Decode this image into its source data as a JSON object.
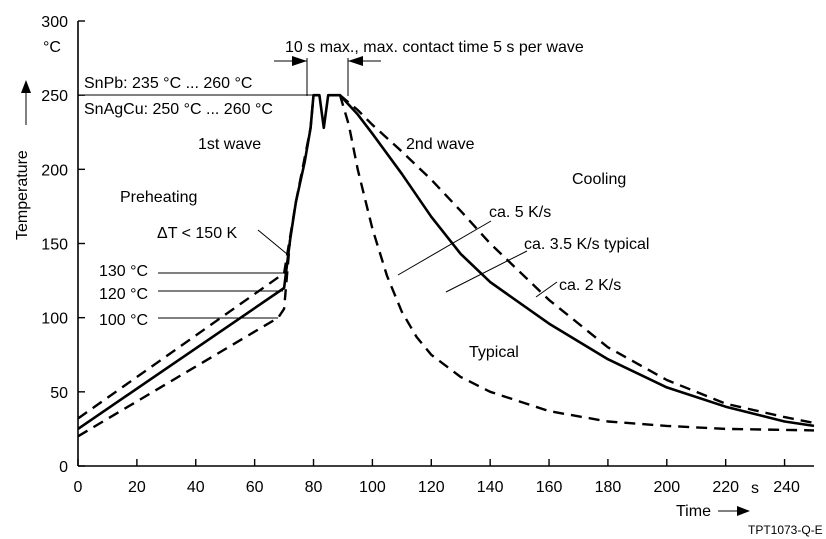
{
  "chart_data": {
    "type": "line",
    "xlabel": "Time",
    "ylabel": "Temperature",
    "x_unit": "s",
    "y_unit": "°C",
    "xlim": [
      0,
      250
    ],
    "ylim": [
      0,
      300
    ],
    "x_ticks": [
      0,
      20,
      40,
      60,
      80,
      100,
      120,
      140,
      160,
      180,
      200,
      220,
      240
    ],
    "y_ticks": [
      0,
      50,
      100,
      150,
      200,
      250,
      300
    ],
    "series": [
      {
        "style": "solid",
        "points": [
          [
            0,
            25
          ],
          [
            70,
            120
          ],
          [
            72,
            152
          ],
          [
            74,
            178
          ],
          [
            77,
            205
          ],
          [
            79,
            228
          ],
          [
            80,
            250
          ],
          [
            82,
            250
          ],
          [
            83.5,
            228
          ],
          [
            85,
            250
          ],
          [
            89,
            250
          ],
          [
            95,
            237
          ],
          [
            100,
            224
          ],
          [
            110,
            197
          ],
          [
            120,
            168
          ],
          [
            130,
            143
          ],
          [
            140,
            124
          ],
          [
            160,
            96
          ],
          [
            180,
            72
          ],
          [
            200,
            53
          ],
          [
            220,
            40
          ],
          [
            240,
            30
          ],
          [
            250,
            27
          ]
        ]
      },
      {
        "style": "dashed",
        "points": [
          [
            0,
            32
          ],
          [
            70,
            130
          ],
          [
            74,
            178
          ],
          [
            79,
            228
          ],
          [
            80,
            250
          ]
        ]
      },
      {
        "style": "dashed",
        "points": [
          [
            0,
            20
          ],
          [
            68,
            100
          ],
          [
            70,
            106
          ],
          [
            72,
            152
          ]
        ]
      },
      {
        "style": "dashed",
        "points": [
          [
            89,
            250
          ],
          [
            95,
            240
          ],
          [
            100,
            230
          ],
          [
            110,
            212
          ],
          [
            120,
            193
          ],
          [
            130,
            172
          ],
          [
            140,
            150
          ],
          [
            160,
            112
          ],
          [
            180,
            80
          ],
          [
            200,
            58
          ],
          [
            220,
            42
          ],
          [
            240,
            33
          ],
          [
            250,
            29
          ]
        ]
      },
      {
        "style": "dashed",
        "points": [
          [
            89,
            250
          ],
          [
            92,
            230
          ],
          [
            95,
            200
          ],
          [
            100,
            160
          ],
          [
            105,
            128
          ],
          [
            110,
            104
          ],
          [
            115,
            87
          ],
          [
            120,
            75
          ],
          [
            130,
            60
          ],
          [
            140,
            50
          ],
          [
            160,
            37
          ],
          [
            180,
            30
          ],
          [
            200,
            27
          ],
          [
            220,
            25
          ],
          [
            250,
            24
          ]
        ]
      }
    ],
    "annotations": {
      "unit_y": "°C",
      "unit_x": "s",
      "dwell": "10 s max., max. contact time 5 s per wave",
      "snpb": "SnPb: 235 °C ... 260 °C",
      "snagcu": "SnAgCu: 250 °C ... 260 °C",
      "wave1": "1st wave",
      "wave2": "2nd wave",
      "preheating": "Preheating",
      "cooling": "Cooling",
      "delta": "ΔT < 150 K",
      "t130": "130 °C",
      "t120": "120 °C",
      "t100": "100 °C",
      "rate5": "ca. 5 K/s",
      "rate35": "ca. 3.5 K/s typical",
      "rate2": "ca. 2 K/s",
      "typical": "Typical",
      "code": "TPT1073-Q-E"
    }
  }
}
